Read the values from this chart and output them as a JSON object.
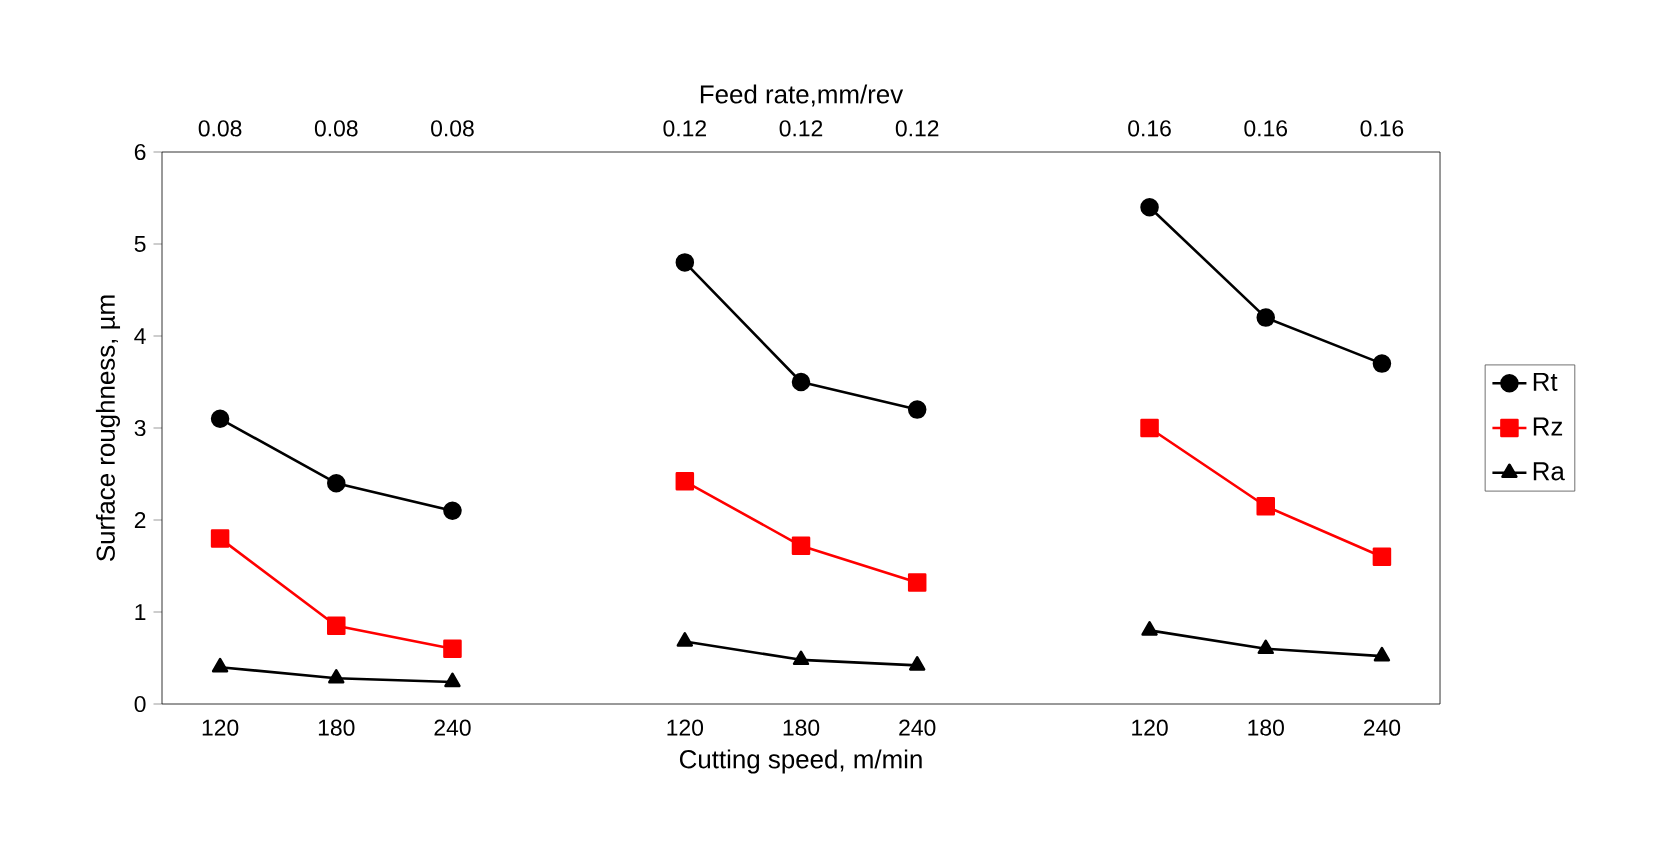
{
  "chart_data": {
    "type": "line",
    "xlabel": "Cutting speed, m/min",
    "ylabel": "Surface roughness, µm",
    "x2label": "Feed rate,mm/rev",
    "categories": [
      "120",
      "180",
      "240",
      null,
      "120",
      "180",
      "240",
      null,
      "120",
      "180",
      "240"
    ],
    "series": [
      {
        "name": "Rt",
        "color": "#000000",
        "marker": "circle",
        "values": [
          3.1,
          2.4,
          2.1,
          null,
          4.8,
          3.5,
          3.2,
          null,
          5.4,
          4.2,
          3.7
        ]
      },
      {
        "name": "Rz",
        "color": "#ff0000",
        "marker": "square",
        "values": [
          1.8,
          0.85,
          0.6,
          null,
          2.42,
          1.72,
          1.32,
          null,
          3.0,
          2.15,
          1.6
        ]
      },
      {
        "name": "Ra",
        "color": "#000000",
        "marker": "triangle",
        "values": [
          0.4,
          0.28,
          0.24,
          null,
          0.68,
          0.48,
          0.42,
          null,
          0.8,
          0.6,
          0.52
        ]
      }
    ],
    "ylim": [
      0,
      6
    ],
    "yticks": [
      0,
      1,
      2,
      3,
      4,
      5,
      6
    ],
    "annotations": [
      "0.08",
      "0.08",
      "0.08",
      "0.12",
      "0.12",
      "0.12",
      "0.16",
      "0.16",
      "0.16"
    ],
    "grid": false,
    "legend": "right",
    "line_style": "solid"
  }
}
